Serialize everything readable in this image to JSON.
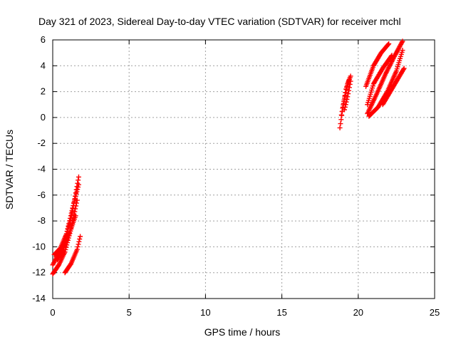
{
  "chart_data": {
    "type": "scatter",
    "title": "Day 321 of 2023, Sidereal Day-to-day VTEC variation (SDTVAR) for receiver mchl",
    "xlabel": "GPS time / hours",
    "ylabel": "SDTVAR / TECUs",
    "xlim": [
      0,
      25
    ],
    "ylim": [
      -14,
      6
    ],
    "xticks": [
      0,
      5,
      10,
      15,
      20,
      25
    ],
    "yticks": [
      -14,
      -12,
      -10,
      -8,
      -6,
      -4,
      -2,
      0,
      2,
      4,
      6
    ],
    "grid": true,
    "marker": "plus",
    "color": "#ff0000",
    "tracks": [
      {
        "x": [
          0.0,
          0.4,
          0.8,
          1.2,
          1.6
        ],
        "y": [
          -12.1,
          -11.4,
          -10.4,
          -8.6,
          -6.4
        ]
      },
      {
        "x": [
          0.0,
          0.4,
          0.8,
          1.2,
          1.7
        ],
        "y": [
          -11.4,
          -10.5,
          -9.5,
          -7.8,
          -4.6
        ]
      },
      {
        "x": [
          0.1,
          0.5,
          0.9,
          1.3,
          1.7
        ],
        "y": [
          -10.6,
          -10.1,
          -9.0,
          -7.0,
          -5.2
        ]
      },
      {
        "x": [
          0.3,
          0.7,
          1.1,
          1.5
        ],
        "y": [
          -11.0,
          -10.2,
          -8.9,
          -7.6
        ]
      },
      {
        "x": [
          0.8,
          1.2,
          1.6,
          1.8
        ],
        "y": [
          -12.0,
          -11.3,
          -10.2,
          -9.2
        ]
      },
      {
        "x": [
          18.8,
          19.0,
          19.2,
          19.4
        ],
        "y": [
          -0.8,
          0.8,
          2.2,
          2.9
        ]
      },
      {
        "x": [
          18.9,
          19.1,
          19.3,
          19.5
        ],
        "y": [
          0.2,
          1.5,
          2.6,
          3.2
        ]
      },
      {
        "x": [
          19.1,
          19.3,
          19.5
        ],
        "y": [
          0.6,
          1.6,
          2.8
        ]
      },
      {
        "x": [
          20.5,
          21.0,
          21.5,
          22.0
        ],
        "y": [
          2.4,
          4.0,
          5.0,
          5.7
        ]
      },
      {
        "x": [
          20.6,
          21.0,
          21.6,
          22.2
        ],
        "y": [
          1.0,
          2.6,
          3.8,
          4.8
        ]
      },
      {
        "x": [
          20.6,
          21.2,
          21.8,
          22.4,
          22.9
        ],
        "y": [
          0.3,
          1.8,
          3.4,
          4.8,
          5.9
        ]
      },
      {
        "x": [
          20.7,
          21.3,
          21.9,
          22.5,
          22.9
        ],
        "y": [
          0.1,
          0.8,
          2.0,
          3.6,
          5.2
        ]
      },
      {
        "x": [
          21.6,
          22.1,
          22.6,
          23.0
        ],
        "y": [
          1.0,
          2.0,
          3.0,
          3.8
        ]
      }
    ]
  }
}
